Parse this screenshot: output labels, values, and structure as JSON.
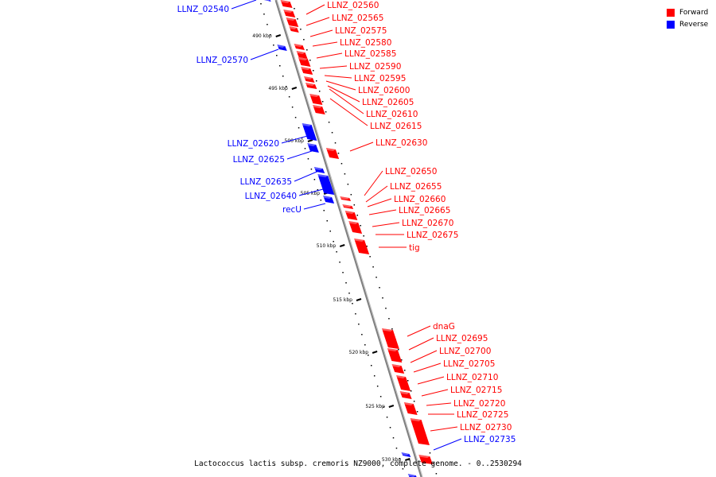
{
  "legend": [
    {
      "label": "Forward",
      "color": "#ff0000"
    },
    {
      "label": "Reverse",
      "color": "#0000ff"
    }
  ],
  "caption": "Lactococcus lactis subsp. cremoris NZ9000, complete genome. - 0..2530294",
  "colors": {
    "forward": "#ff0000",
    "reverse": "#0000ff",
    "backbone": "#7f7f7f",
    "tick": "#000000"
  },
  "ticks": [
    "490 kbp",
    "495 kbp",
    "500 kbp",
    "505 kbp",
    "510 kbp",
    "515 kbp",
    "520 kbp",
    "525 kbp",
    "530 kbp"
  ],
  "genes": {
    "forward": [
      "LLNZ_02560",
      "LLNZ_02565",
      "LLNZ_02575",
      "LLNZ_02580",
      "LLNZ_02585",
      "LLNZ_02590",
      "LLNZ_02595",
      "LLNZ_02600",
      "LLNZ_02605",
      "LLNZ_02610",
      "LLNZ_02615",
      "LLNZ_02630",
      "LLNZ_02650",
      "LLNZ_02655",
      "LLNZ_02660",
      "LLNZ_02665",
      "LLNZ_02670",
      "LLNZ_02675",
      "tig",
      "dnaG",
      "LLNZ_02695",
      "LLNZ_02700",
      "LLNZ_02705",
      "LLNZ_02710",
      "LLNZ_02715",
      "LLNZ_02720",
      "LLNZ_02725",
      "LLNZ_02730"
    ],
    "reverse": [
      "LLNZ_02540",
      "LLNZ_02570",
      "LLNZ_02620",
      "LLNZ_02625",
      "LLNZ_02635",
      "LLNZ_02640",
      "recU",
      "LLNZ_02735"
    ]
  }
}
